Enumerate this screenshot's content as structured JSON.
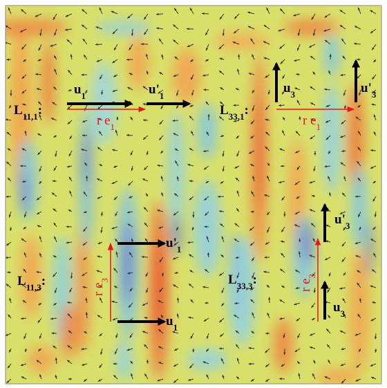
{
  "panels": [
    {
      "name": {
        "base": "L",
        "sub": "11,1",
        "tail": ":"
      },
      "vectors": [
        {
          "base": "u",
          "sub": "1"
        },
        {
          "base": "u'",
          "sub": "1"
        }
      ],
      "separation": {
        "base": "r e",
        "sub": "1"
      }
    },
    {
      "name": {
        "base": "L",
        "sub": "33,1",
        "tail": ":"
      },
      "vectors": [
        {
          "base": "u",
          "sub": "3"
        },
        {
          "base": "u'",
          "sub": "3"
        }
      ],
      "separation": {
        "base": "r e",
        "sub": "1"
      }
    },
    {
      "name": {
        "base": "L",
        "sub": "11,3",
        "tail": ":"
      },
      "vectors": [
        {
          "base": "u",
          "sub": "1"
        },
        {
          "base": "u'",
          "sub": "1"
        }
      ],
      "separation": {
        "base": "r e",
        "sub": "3"
      }
    },
    {
      "name": {
        "base": "L",
        "sub": "33,3",
        "tail": ":"
      },
      "vectors": [
        {
          "base": "u",
          "sub": "3"
        },
        {
          "base": "u'",
          "sub": "3"
        }
      ],
      "separation": {
        "base": "r e",
        "sub": "3"
      }
    }
  ]
}
